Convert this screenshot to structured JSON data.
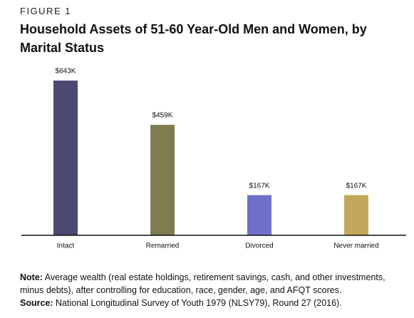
{
  "figure_label": "FIGURE 1",
  "chart_data": {
    "type": "bar",
    "title": "Household Assets of 51-60 Year-Old Men and Women, by Marital Status",
    "categories": [
      "Intact",
      "Remarried",
      "Divorced",
      "Never married"
    ],
    "values": [
      643,
      459,
      167,
      167
    ],
    "value_labels": [
      "$643K",
      "$459K",
      "$167K",
      "$167K"
    ],
    "colors": [
      "#4b4a72",
      "#7d7d50",
      "#7070c8",
      "#c4a75a"
    ]
  },
  "note": {
    "label": "Note:",
    "text": "Average wealth (real estate holdings, retirement savings, cash, and other investments, minus debts), after controlling for education, race, gender, age, and AFQT scores."
  },
  "source": {
    "label": "Source:",
    "text": "National Longitudinal Survey of Youth 1979 (NLSY79), Round 27 (2016)."
  }
}
